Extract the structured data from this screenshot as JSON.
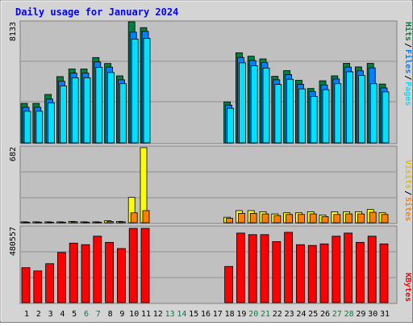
{
  "title": "Daily usage for January 2024",
  "colors": {
    "title": "#0000ff",
    "hits": "#008040",
    "files": "#0080ff",
    "pages": "#00e0ff",
    "visits": "#ffff00",
    "sites": "#ff8000",
    "kbytes": "#ff0000",
    "weekend_label": "#008040",
    "panel_bg": "#c0c0c0",
    "frame_bg": "#d4d4d4"
  },
  "labels": {
    "hits": "Hits",
    "files": "Files",
    "pages": "Pages",
    "visits": "Visits",
    "sites": "Sites",
    "kbytes": "KBytes",
    "sep": "/"
  },
  "chart_data": [
    {
      "type": "bar",
      "panel": "hits-files-pages",
      "ylabel_max": "8133",
      "ylim": [
        0,
        8133
      ],
      "categories": [
        "1",
        "2",
        "3",
        "4",
        "5",
        "6",
        "7",
        "8",
        "9",
        "10",
        "11",
        "12",
        "13",
        "14",
        "15",
        "16",
        "17",
        "18",
        "19",
        "20",
        "21",
        "22",
        "23",
        "24",
        "25",
        "26",
        "27",
        "28",
        "29",
        "30",
        "31"
      ],
      "weekend": [
        6,
        7,
        13,
        14,
        20,
        21,
        27,
        28
      ],
      "series": [
        {
          "name": "Hits",
          "values": [
            2650,
            2650,
            3250,
            4450,
            4960,
            4960,
            5730,
            5330,
            4500,
            8133,
            7740,
            0,
            0,
            0,
            0,
            0,
            0,
            2750,
            6050,
            5820,
            5640,
            4470,
            4850,
            4200,
            3650,
            4170,
            4500,
            5340,
            5100,
            5340,
            3950
          ]
        },
        {
          "name": "Files",
          "values": [
            2550,
            2550,
            3100,
            4300,
            4850,
            4850,
            5600,
            5250,
            4400,
            7600,
            7650,
            0,
            0,
            0,
            0,
            0,
            0,
            2700,
            5900,
            5700,
            5550,
            4400,
            4750,
            4100,
            3600,
            4050,
            4450,
            5250,
            5000,
            5200,
            3850
          ]
        },
        {
          "name": "Pages",
          "values": [
            2450,
            2450,
            3000,
            4150,
            4700,
            4700,
            5400,
            5050,
            4300,
            7300,
            7350,
            0,
            0,
            0,
            0,
            0,
            0,
            2650,
            5700,
            5500,
            5350,
            4250,
            4600,
            3950,
            3450,
            3900,
            4300,
            5100,
            4850,
            4300,
            3750
          ]
        }
      ]
    },
    {
      "type": "bar",
      "panel": "visits-sites",
      "ylabel_max": "682",
      "ylim": [
        0,
        682
      ],
      "categories": [
        "1",
        "2",
        "3",
        "4",
        "5",
        "6",
        "7",
        "8",
        "9",
        "10",
        "11",
        "12",
        "13",
        "14",
        "15",
        "16",
        "17",
        "18",
        "19",
        "20",
        "21",
        "22",
        "23",
        "24",
        "25",
        "26",
        "27",
        "28",
        "29",
        "30",
        "31"
      ],
      "series": [
        {
          "name": "Visits",
          "values": [
            8,
            8,
            8,
            8,
            12,
            8,
            8,
            18,
            12,
            230,
            682,
            0,
            0,
            0,
            0,
            0,
            0,
            50,
            110,
            110,
            100,
            80,
            90,
            90,
            100,
            70,
            100,
            100,
            100,
            120,
            90
          ]
        },
        {
          "name": "Sites",
          "values": [
            5,
            5,
            5,
            5,
            8,
            5,
            5,
            10,
            8,
            90,
            110,
            0,
            0,
            0,
            0,
            0,
            0,
            40,
            85,
            85,
            80,
            65,
            75,
            75,
            80,
            55,
            75,
            80,
            80,
            95,
            75
          ]
        }
      ]
    },
    {
      "type": "bar",
      "panel": "kbytes",
      "ylabel_max": "480557",
      "ylim": [
        0,
        480557
      ],
      "categories": [
        "1",
        "2",
        "3",
        "4",
        "5",
        "6",
        "7",
        "8",
        "9",
        "10",
        "11",
        "12",
        "13",
        "14",
        "15",
        "16",
        "17",
        "18",
        "19",
        "20",
        "21",
        "22",
        "23",
        "24",
        "25",
        "26",
        "27",
        "28",
        "29",
        "30",
        "31"
      ],
      "series": [
        {
          "name": "KBytes",
          "values": [
            226000,
            205000,
            252000,
            325000,
            385000,
            375000,
            430000,
            390000,
            350000,
            480557,
            480557,
            0,
            0,
            0,
            0,
            0,
            0,
            234000,
            450000,
            440000,
            440000,
            395000,
            455000,
            375000,
            370000,
            380000,
            430000,
            450000,
            390000,
            430000,
            380000
          ]
        }
      ]
    }
  ]
}
